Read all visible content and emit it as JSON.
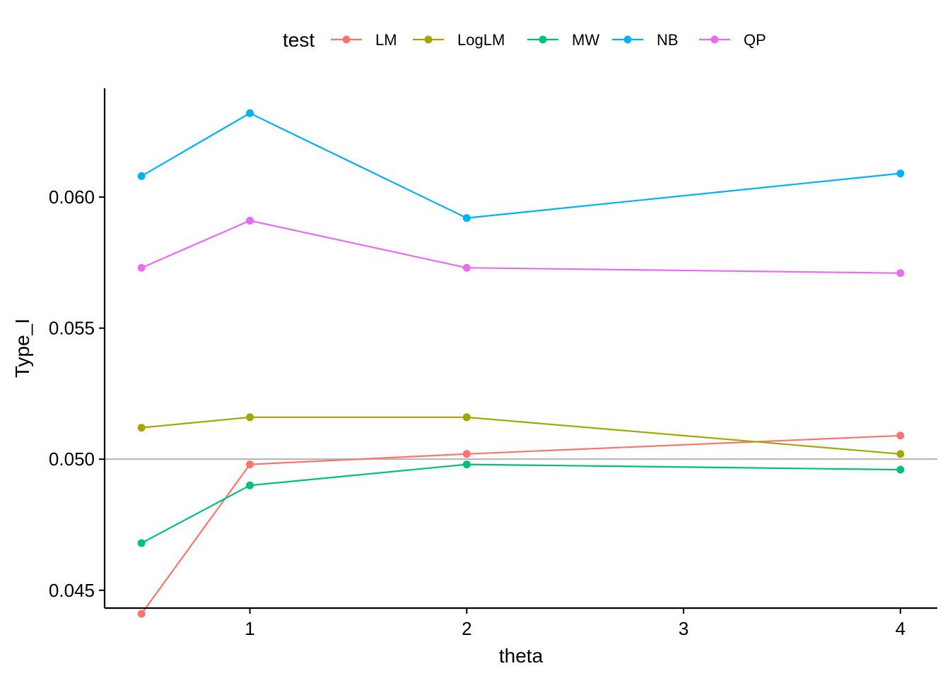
{
  "chart_data": {
    "type": "line",
    "xlabel": "theta",
    "ylabel": "Type_I",
    "legend_title": "test",
    "legend_position": "top",
    "grid": false,
    "xlim": [
      0.33,
      4.17
    ],
    "ylim": [
      0.04432,
      0.06415
    ],
    "x_ticks": [
      1,
      2,
      3,
      4
    ],
    "y_ticks": [
      0.045,
      0.05,
      0.055,
      0.06
    ],
    "x_tick_labels": [
      "1",
      "2",
      "3",
      "4"
    ],
    "y_tick_labels": [
      "0.045",
      "0.050",
      "0.055",
      "0.060"
    ],
    "reference_line": {
      "y": 0.05,
      "color": "#b3b3b3"
    },
    "x": [
      0.5,
      1,
      2,
      4
    ],
    "series": [
      {
        "name": "LM",
        "color": "#f8766d",
        "values": [
          0.0441,
          0.0498,
          0.0502,
          0.0509
        ]
      },
      {
        "name": "LogLM",
        "color": "#a3a500",
        "values": [
          0.0512,
          0.0516,
          0.0516,
          0.0502
        ]
      },
      {
        "name": "MW",
        "color": "#00bf7d",
        "values": [
          0.0468,
          0.049,
          0.0498,
          0.0496
        ]
      },
      {
        "name": "NB",
        "color": "#00b0f6",
        "values": [
          0.0608,
          0.0632,
          0.0592,
          0.0609
        ]
      },
      {
        "name": "QP",
        "color": "#e76bf3",
        "values": [
          0.0573,
          0.0591,
          0.0573,
          0.0571
        ]
      }
    ]
  }
}
